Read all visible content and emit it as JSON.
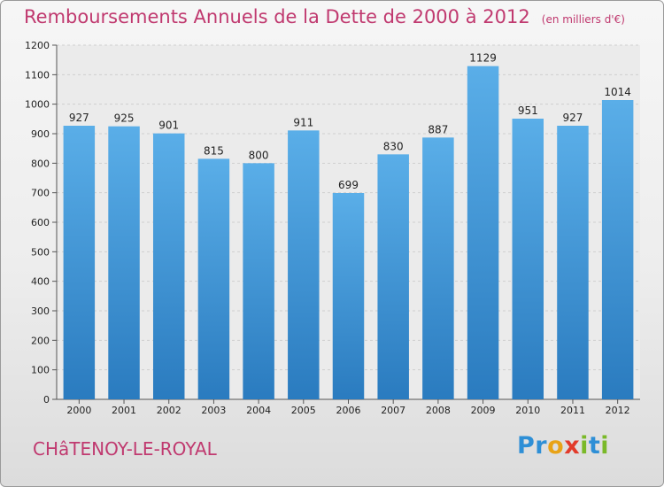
{
  "title": "Remboursements Annuels de la Dette de 2000 à 2012",
  "unit_note": "(en milliers d'€)",
  "town": "CHâTENOY-LE-ROYAL",
  "brand": {
    "letters": [
      "P",
      "r",
      "o",
      "x",
      "i",
      "t",
      "i"
    ],
    "colors": [
      "#2e8fd6",
      "#2e8fd6",
      "#e8a317",
      "#e23b2a",
      "#7ab929",
      "#2e8fd6",
      "#7ab929"
    ]
  },
  "colors": {
    "bar_top": "#5aaee8",
    "bar_bottom": "#2a7bbf",
    "title": "#c0396f"
  },
  "chart_data": {
    "type": "bar",
    "categories": [
      "2000",
      "2001",
      "2002",
      "2003",
      "2004",
      "2005",
      "2006",
      "2007",
      "2008",
      "2009",
      "2010",
      "2011",
      "2012"
    ],
    "values": [
      927,
      925,
      901,
      815,
      800,
      911,
      699,
      830,
      887,
      1129,
      951,
      927,
      1014
    ],
    "ylim": [
      0,
      1200
    ],
    "yticks": [
      0,
      100,
      200,
      300,
      400,
      500,
      600,
      700,
      800,
      900,
      1000,
      1100,
      1200
    ],
    "grid": true,
    "title": "Remboursements Annuels de la Dette de 2000 à 2012",
    "xlabel": "",
    "ylabel": ""
  }
}
